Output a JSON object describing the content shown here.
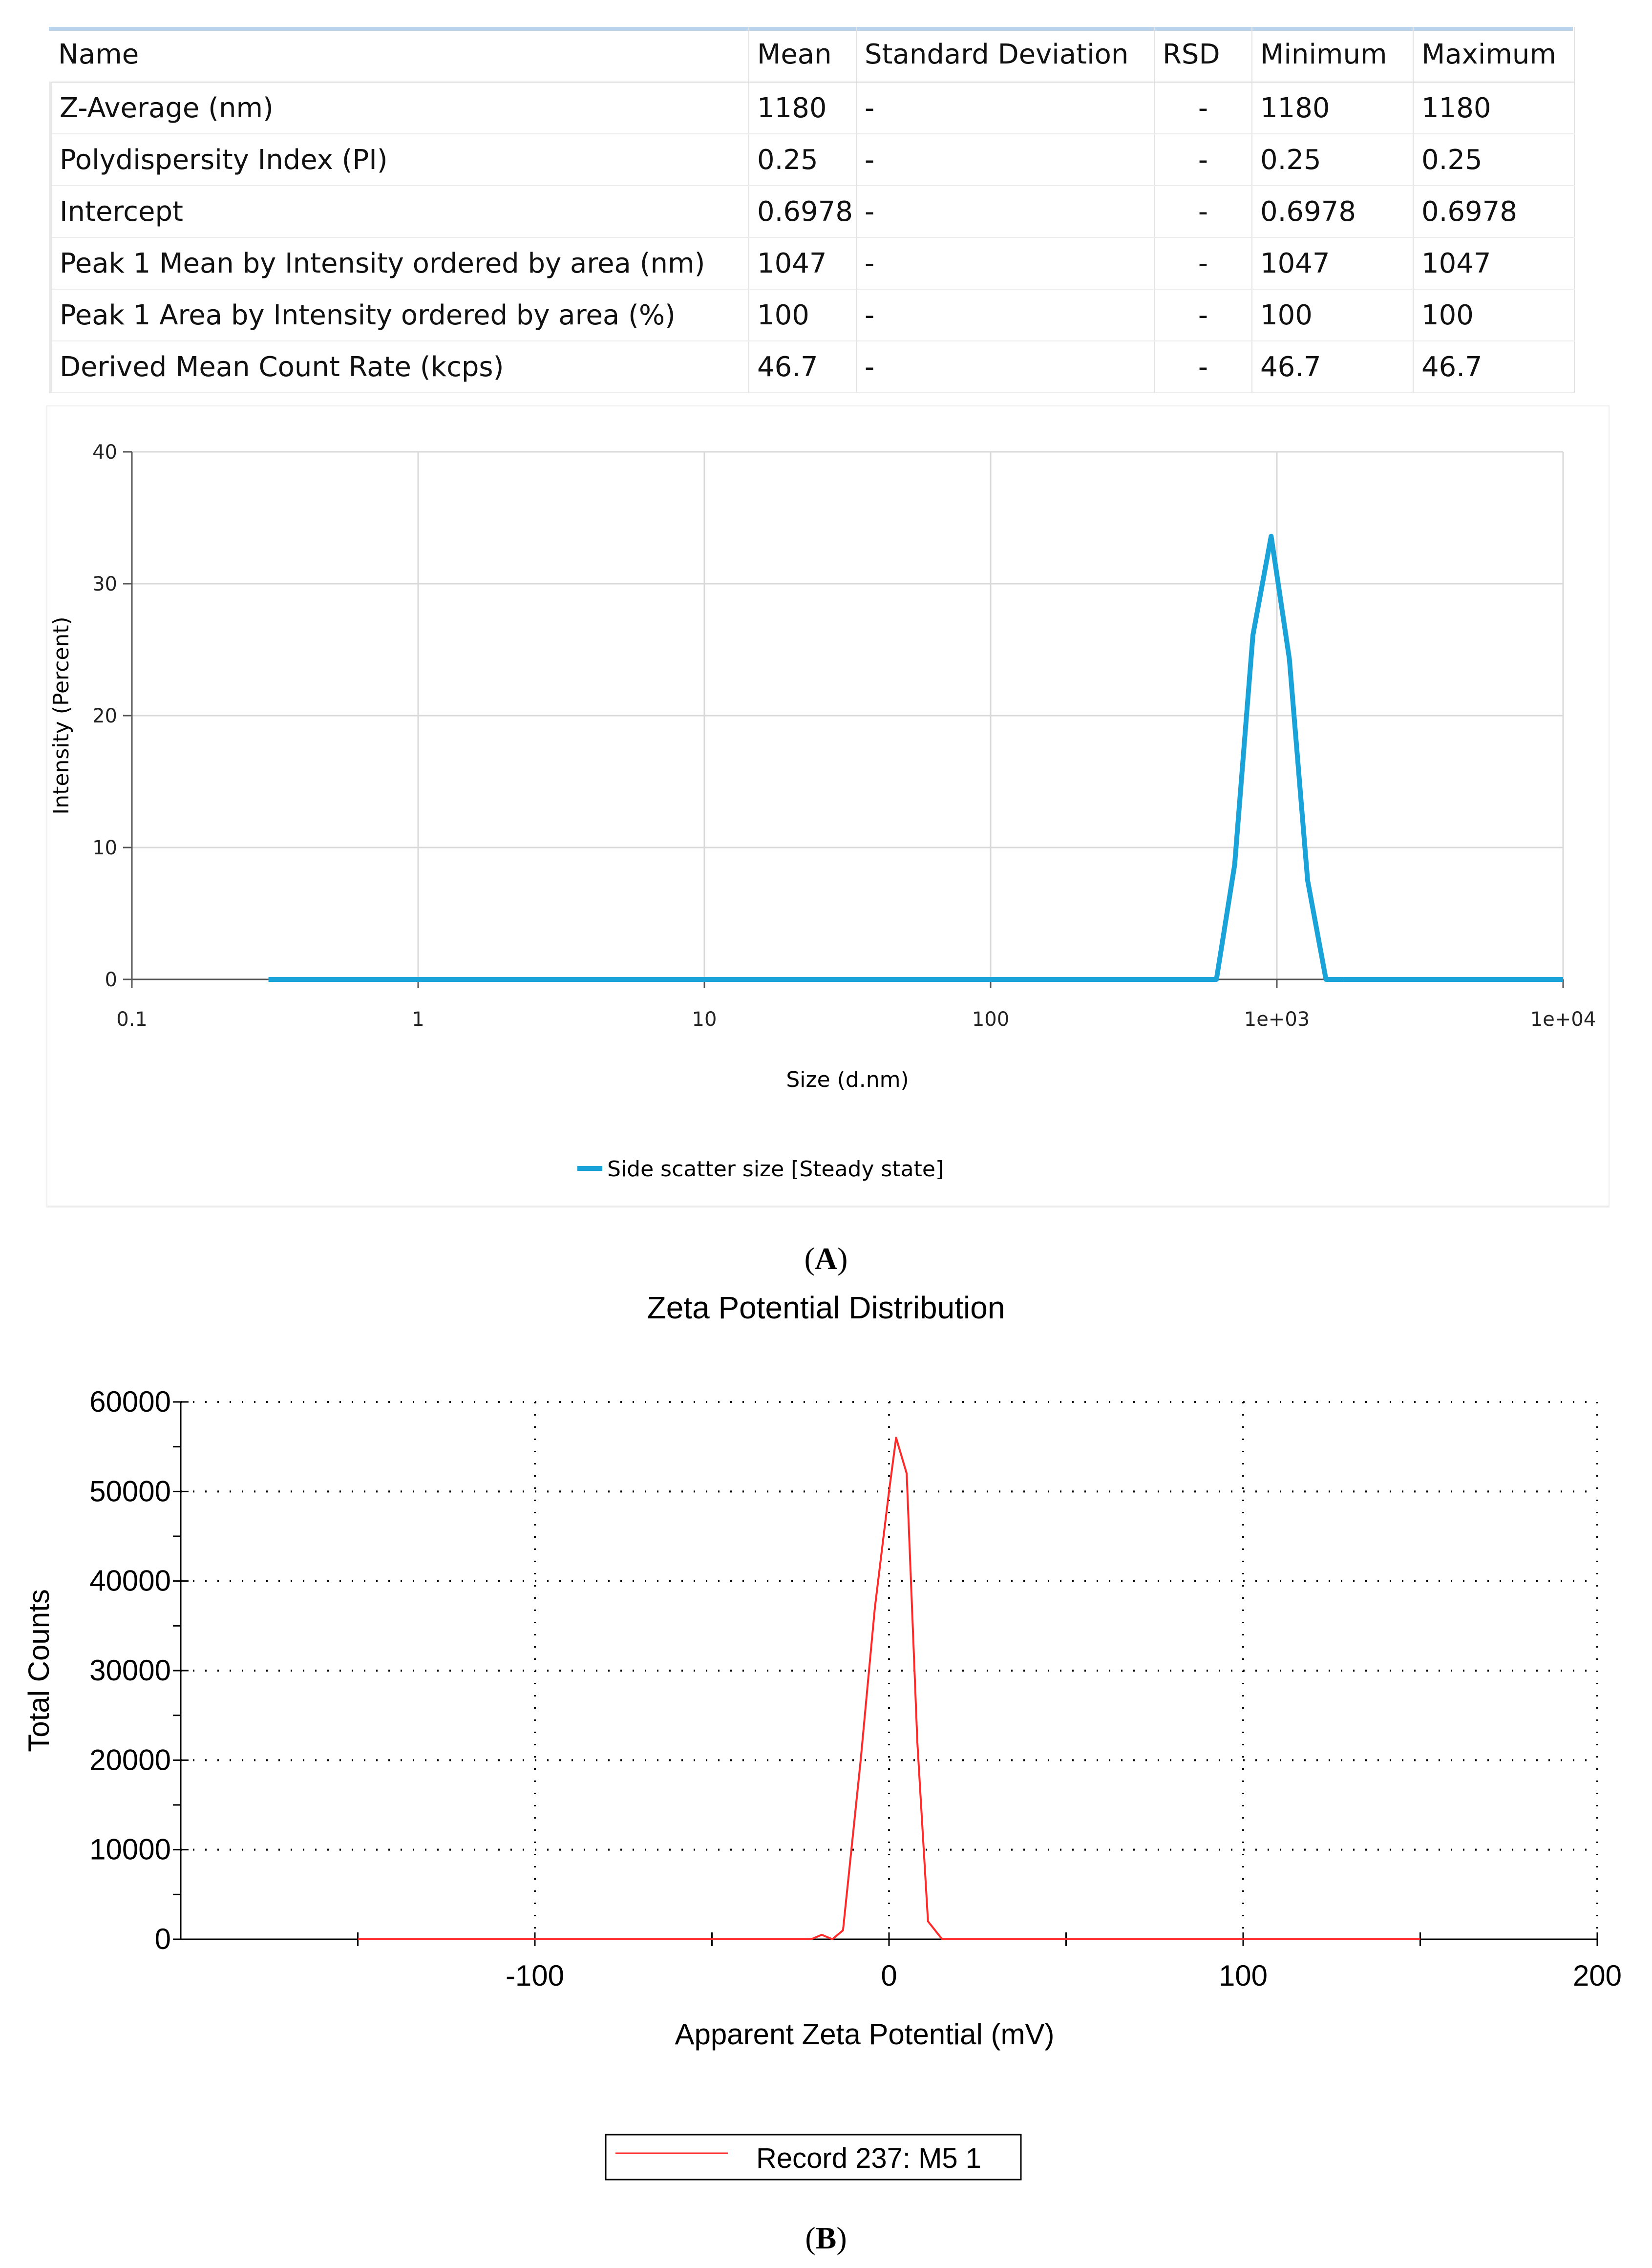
{
  "table": {
    "headers": [
      "Name",
      "Mean",
      "Standard Deviation",
      "RSD",
      "Minimum",
      "Maximum"
    ],
    "rows": [
      [
        "Z-Average (nm)",
        "1180",
        "-",
        "-",
        "1180",
        "1180"
      ],
      [
        "Polydispersity Index (PI)",
        "0.25",
        "-",
        "-",
        "0.25",
        "0.25"
      ],
      [
        "Intercept",
        "0.6978",
        "-",
        "-",
        "0.6978",
        "0.6978"
      ],
      [
        "Peak 1 Mean by Intensity ordered by area (nm)",
        "1047",
        "-",
        "-",
        "1047",
        "1047"
      ],
      [
        "Peak 1 Area by Intensity ordered by area (%)",
        "100",
        "-",
        "-",
        "100",
        "100"
      ],
      [
        "Derived Mean Count Rate (kcps)",
        "46.7",
        "-",
        "-",
        "46.7",
        "46.7"
      ]
    ]
  },
  "panel_labels": {
    "a": "(A)",
    "b": "(B)"
  },
  "chart_data": [
    {
      "type": "line",
      "xscale": "log",
      "xlabel": "Size (d.nm)",
      "ylabel": "Intensity (Percent)",
      "x_ticks": [
        "0.1",
        "1",
        "10",
        "100",
        "1e+03",
        "1e+04"
      ],
      "x_tick_values": [
        0.1,
        1,
        10,
        100,
        1000,
        10000
      ],
      "y_ticks": [
        "0",
        "10",
        "20",
        "30",
        "40"
      ],
      "xlim": [
        0.1,
        10000
      ],
      "ylim": [
        0,
        40
      ],
      "grid": true,
      "legend_position": "bottom-center",
      "series": [
        {
          "name": "Side scatter size [Steady state]",
          "color": "#1aa3d9",
          "x": [
            0.3,
            100,
            615,
            712,
            825,
            955,
            1106,
            1281,
            1484,
            1718
          ],
          "y": [
            0,
            0,
            0,
            8.7,
            26.1,
            33.6,
            24.3,
            7.5,
            0,
            0
          ]
        },
        {
          "name": "",
          "color": "#1aa3d9",
          "x": [
            1718,
            10000
          ],
          "y": [
            0,
            0
          ]
        }
      ]
    },
    {
      "type": "line",
      "title": "Zeta Potential Distribution",
      "xlabel": "Apparent Zeta Potential (mV)",
      "ylabel": "Total Counts",
      "x_ticks": [
        "-100",
        "0",
        "100",
        "200"
      ],
      "x_tick_values": [
        -100,
        0,
        100,
        200
      ],
      "y_ticks": [
        "0",
        "10000",
        "20000",
        "30000",
        "40000",
        "50000",
        "60000"
      ],
      "xlim": [
        -200,
        200
      ],
      "ylim": [
        0,
        60000
      ],
      "grid": true,
      "legend_position": "bottom-center",
      "series": [
        {
          "name": "Record 237: M5 1",
          "color": "#ff2a2a",
          "x": [
            -150,
            -22,
            -19,
            -16,
            -13,
            -8,
            -4,
            0,
            2,
            5,
            8,
            11,
            15,
            150
          ],
          "y": [
            0,
            0,
            500,
            0,
            1000,
            20000,
            37000,
            50000,
            56000,
            52000,
            22000,
            2000,
            0,
            0
          ]
        }
      ]
    }
  ]
}
